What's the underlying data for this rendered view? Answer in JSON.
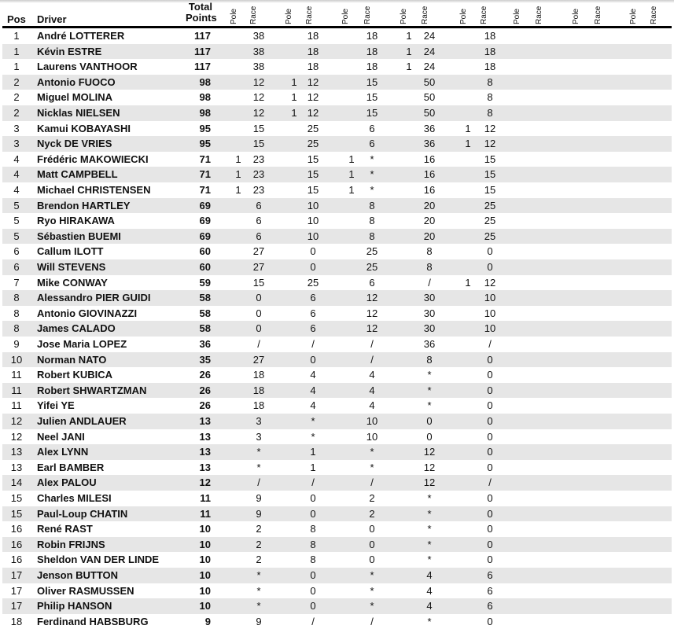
{
  "header": {
    "pos": "Pos",
    "driver": "Driver",
    "total_line1": "Total",
    "total_line2": "Points",
    "pole": "Pole",
    "race": "Race"
  },
  "event_columns": 8,
  "rows": [
    [
      "1",
      "André LOTTERER",
      "117",
      "",
      "38",
      "",
      "18",
      "",
      "18",
      "1",
      "24",
      "",
      "18"
    ],
    [
      "1",
      "Kévin ESTRE",
      "117",
      "",
      "38",
      "",
      "18",
      "",
      "18",
      "1",
      "24",
      "",
      "18"
    ],
    [
      "1",
      "Laurens VANTHOOR",
      "117",
      "",
      "38",
      "",
      "18",
      "",
      "18",
      "1",
      "24",
      "",
      "18"
    ],
    [
      "2",
      "Antonio FUOCO",
      "98",
      "",
      "12",
      "1",
      "12",
      "",
      "15",
      "",
      "50",
      "",
      "8"
    ],
    [
      "2",
      "Miguel MOLINA",
      "98",
      "",
      "12",
      "1",
      "12",
      "",
      "15",
      "",
      "50",
      "",
      "8"
    ],
    [
      "2",
      "Nicklas NIELSEN",
      "98",
      "",
      "12",
      "1",
      "12",
      "",
      "15",
      "",
      "50",
      "",
      "8"
    ],
    [
      "3",
      "Kamui KOBAYASHI",
      "95",
      "",
      "15",
      "",
      "25",
      "",
      "6",
      "",
      "36",
      "1",
      "12"
    ],
    [
      "3",
      "Nyck DE VRIES",
      "95",
      "",
      "15",
      "",
      "25",
      "",
      "6",
      "",
      "36",
      "1",
      "12"
    ],
    [
      "4",
      "Frédéric MAKOWIECKI",
      "71",
      "1",
      "23",
      "",
      "15",
      "1",
      "*",
      "",
      "16",
      "",
      "15"
    ],
    [
      "4",
      "Matt CAMPBELL",
      "71",
      "1",
      "23",
      "",
      "15",
      "1",
      "*",
      "",
      "16",
      "",
      "15"
    ],
    [
      "4",
      "Michael CHRISTENSEN",
      "71",
      "1",
      "23",
      "",
      "15",
      "1",
      "*",
      "",
      "16",
      "",
      "15"
    ],
    [
      "5",
      "Brendon HARTLEY",
      "69",
      "",
      "6",
      "",
      "10",
      "",
      "8",
      "",
      "20",
      "",
      "25"
    ],
    [
      "5",
      "Ryo HIRAKAWA",
      "69",
      "",
      "6",
      "",
      "10",
      "",
      "8",
      "",
      "20",
      "",
      "25"
    ],
    [
      "5",
      "Sébastien BUEMI",
      "69",
      "",
      "6",
      "",
      "10",
      "",
      "8",
      "",
      "20",
      "",
      "25"
    ],
    [
      "6",
      "Callum ILOTT",
      "60",
      "",
      "27",
      "",
      "0",
      "",
      "25",
      "",
      "8",
      "",
      "0"
    ],
    [
      "6",
      "Will STEVENS",
      "60",
      "",
      "27",
      "",
      "0",
      "",
      "25",
      "",
      "8",
      "",
      "0"
    ],
    [
      "7",
      "Mike CONWAY",
      "59",
      "",
      "15",
      "",
      "25",
      "",
      "6",
      "",
      "/",
      "1",
      "12"
    ],
    [
      "8",
      "Alessandro PIER GUIDI",
      "58",
      "",
      "0",
      "",
      "6",
      "",
      "12",
      "",
      "30",
      "",
      "10"
    ],
    [
      "8",
      "Antonio GIOVINAZZI",
      "58",
      "",
      "0",
      "",
      "6",
      "",
      "12",
      "",
      "30",
      "",
      "10"
    ],
    [
      "8",
      "James CALADO",
      "58",
      "",
      "0",
      "",
      "6",
      "",
      "12",
      "",
      "30",
      "",
      "10"
    ],
    [
      "9",
      "Jose Maria LOPEZ",
      "36",
      "",
      "/",
      "",
      "/",
      "",
      "/",
      "",
      "36",
      "",
      "/"
    ],
    [
      "10",
      "Norman NATO",
      "35",
      "",
      "27",
      "",
      "0",
      "",
      "/",
      "",
      "8",
      "",
      "0"
    ],
    [
      "11",
      "Robert KUBICA",
      "26",
      "",
      "18",
      "",
      "4",
      "",
      "4",
      "",
      "*",
      "",
      "0"
    ],
    [
      "11",
      "Robert SHWARTZMAN",
      "26",
      "",
      "18",
      "",
      "4",
      "",
      "4",
      "",
      "*",
      "",
      "0"
    ],
    [
      "11",
      "Yifei YE",
      "26",
      "",
      "18",
      "",
      "4",
      "",
      "4",
      "",
      "*",
      "",
      "0"
    ],
    [
      "12",
      "Julien ANDLAUER",
      "13",
      "",
      "3",
      "",
      "*",
      "",
      "10",
      "",
      "0",
      "",
      "0"
    ],
    [
      "12",
      "Neel JANI",
      "13",
      "",
      "3",
      "",
      "*",
      "",
      "10",
      "",
      "0",
      "",
      "0"
    ],
    [
      "13",
      "Alex LYNN",
      "13",
      "",
      "*",
      "",
      "1",
      "",
      "*",
      "",
      "12",
      "",
      "0"
    ],
    [
      "13",
      "Earl BAMBER",
      "13",
      "",
      "*",
      "",
      "1",
      "",
      "*",
      "",
      "12",
      "",
      "0"
    ],
    [
      "14",
      "Alex PALOU",
      "12",
      "",
      "/",
      "",
      "/",
      "",
      "/",
      "",
      "12",
      "",
      "/"
    ],
    [
      "15",
      "Charles MILESI",
      "11",
      "",
      "9",
      "",
      "0",
      "",
      "2",
      "",
      "*",
      "",
      "0"
    ],
    [
      "15",
      "Paul-Loup CHATIN",
      "11",
      "",
      "9",
      "",
      "0",
      "",
      "2",
      "",
      "*",
      "",
      "0"
    ],
    [
      "16",
      "René RAST",
      "10",
      "",
      "2",
      "",
      "8",
      "",
      "0",
      "",
      "*",
      "",
      "0"
    ],
    [
      "16",
      "Robin FRIJNS",
      "10",
      "",
      "2",
      "",
      "8",
      "",
      "0",
      "",
      "*",
      "",
      "0"
    ],
    [
      "16",
      "Sheldon VAN DER LINDE",
      "10",
      "",
      "2",
      "",
      "8",
      "",
      "0",
      "",
      "*",
      "",
      "0"
    ],
    [
      "17",
      "Jenson BUTTON",
      "10",
      "",
      "*",
      "",
      "0",
      "",
      "*",
      "",
      "4",
      "",
      "6"
    ],
    [
      "17",
      "Oliver RASMUSSEN",
      "10",
      "",
      "*",
      "",
      "0",
      "",
      "*",
      "",
      "4",
      "",
      "6"
    ],
    [
      "17",
      "Philip HANSON",
      "10",
      "",
      "*",
      "",
      "0",
      "",
      "*",
      "",
      "4",
      "",
      "6"
    ],
    [
      "18",
      "Ferdinand HABSBURG",
      "9",
      "",
      "9",
      "",
      "/",
      "",
      "/",
      "",
      "*",
      "",
      "0"
    ]
  ]
}
